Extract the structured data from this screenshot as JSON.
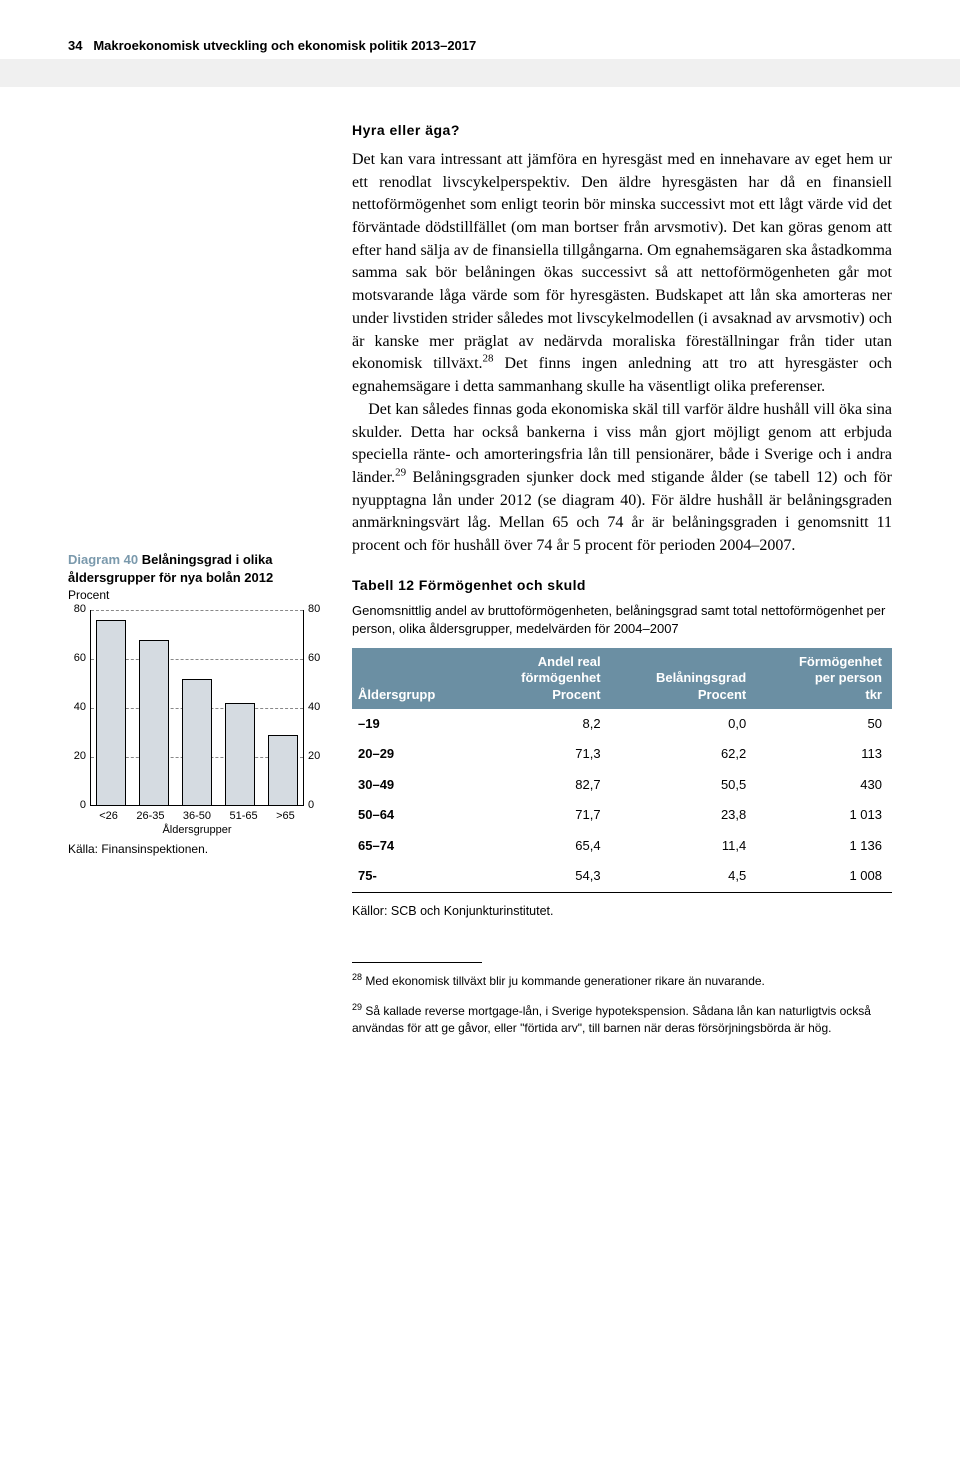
{
  "header": {
    "page_number": "34",
    "title": "Makroekonomisk utveckling och ekonomisk politik 2013–2017"
  },
  "right": {
    "heading": "Hyra eller äga?",
    "body_html": "Det kan vara intressant att jämföra en hyresgäst med en innehavare av eget hem ur ett renodlat livscykelperspektiv. Den äldre hyresgästen har då en finansiell nettoförmögenhet som enligt teorin bör minska successivt mot ett lågt värde vid det förväntade dödstillfället (om man bortser från arvsmotiv). Det kan göras genom att efter hand sälja av de finansiella tillgångarna. Om egnahemsägaren ska åstadkomma samma sak bör belåningen ökas successivt så att nettoförmögenheten går mot motsvarande låga värde som för hyresgästen. Budskapet att lån ska amorteras ner under livstiden strider således mot livscykelmodellen (i avsaknad av arvsmotiv) och är kanske mer präglat av nedärvda moraliska föreställningar från tider utan ekonomisk tillväxt.<span class=\"sup\">28</span> Det finns ingen anledning att tro att hyresgäster och egnahemsägare i detta sammanhang skulle ha väsentligt olika preferenser.<br>&nbsp;&nbsp;&nbsp;&nbsp;Det kan således finnas goda ekonomiska skäl till varför äldre hushåll vill öka sina skulder. Detta har också bankerna i viss mån gjort möjligt genom att erbjuda speciella ränte- och amorteringsfria lån till pensionärer, både i Sverige och i andra länder.<span class=\"sup\">29</span> Belåningsgraden sjunker dock med stigande ålder (se tabell 12) och för nyupptagna lån under 2012 (se diagram 40). För äldre hushåll är belåningsgraden anmärkningsvärt låg. Mellan 65 och 74 år är belåningsgraden i genomsnitt 11 procent och för hushåll över 74 år 5 procent för perioden 2004–2007."
  },
  "chart": {
    "title_accent": "Diagram 40",
    "title_rest": " Belåningsgrad i olika åldersgrupper för nya bolån 2012",
    "unit": "Procent",
    "categories": [
      "<26",
      "26-35",
      "36-50",
      "51-65",
      ">65"
    ],
    "values": [
      76,
      68,
      52,
      42,
      29
    ],
    "ylim": [
      0,
      80
    ],
    "ytick_step": 20,
    "bar_fill": "#d5dbe1",
    "bar_border": "#000000",
    "grid_color": "#888888",
    "x_axis_title": "Åldersgrupper",
    "source": "Källa: Finansinspektionen."
  },
  "table": {
    "title": "Tabell 12 Förmögenhet och skuld",
    "sub": "Genomsnittlig andel av bruttoförmögenheten, belåningsgrad samt total nettoförmögenhet per person, olika åldersgrupper, medelvärden för 2004–2007",
    "columns": [
      {
        "label": "Åldersgrupp"
      },
      {
        "label_lines": [
          "Andel real",
          "förmögenhet",
          "Procent"
        ]
      },
      {
        "label_lines": [
          "",
          "Belåningsgrad",
          "Procent"
        ]
      },
      {
        "label_lines": [
          "Förmögenhet",
          "per person",
          "tkr"
        ]
      }
    ],
    "rows": [
      [
        "–19",
        "8,2",
        "0,0",
        "50"
      ],
      [
        "20–29",
        "71,3",
        "62,2",
        "113"
      ],
      [
        "30–49",
        "82,7",
        "50,5",
        "430"
      ],
      [
        "50–64",
        "71,7",
        "23,8",
        "1 013"
      ],
      [
        "65–74",
        "65,4",
        "11,4",
        "1 136"
      ],
      [
        "75-",
        "54,3",
        "4,5",
        "1 008"
      ]
    ],
    "header_bg": "#6b8fa3",
    "header_color": "#ffffff",
    "source": "Källor: SCB och Konjunkturinstitutet."
  },
  "footnotes": [
    {
      "num": "28",
      "text": "Med ekonomisk tillväxt blir ju kommande generationer rikare än nuvarande."
    },
    {
      "num": "29",
      "text": "Så kallade reverse mortgage-lån, i Sverige hypotekspension. Sådana lån kan naturligtvis också användas för att ge gåvor, eller \"förtida arv\", till barnen när deras försörjningsbörda är hög."
    }
  ]
}
